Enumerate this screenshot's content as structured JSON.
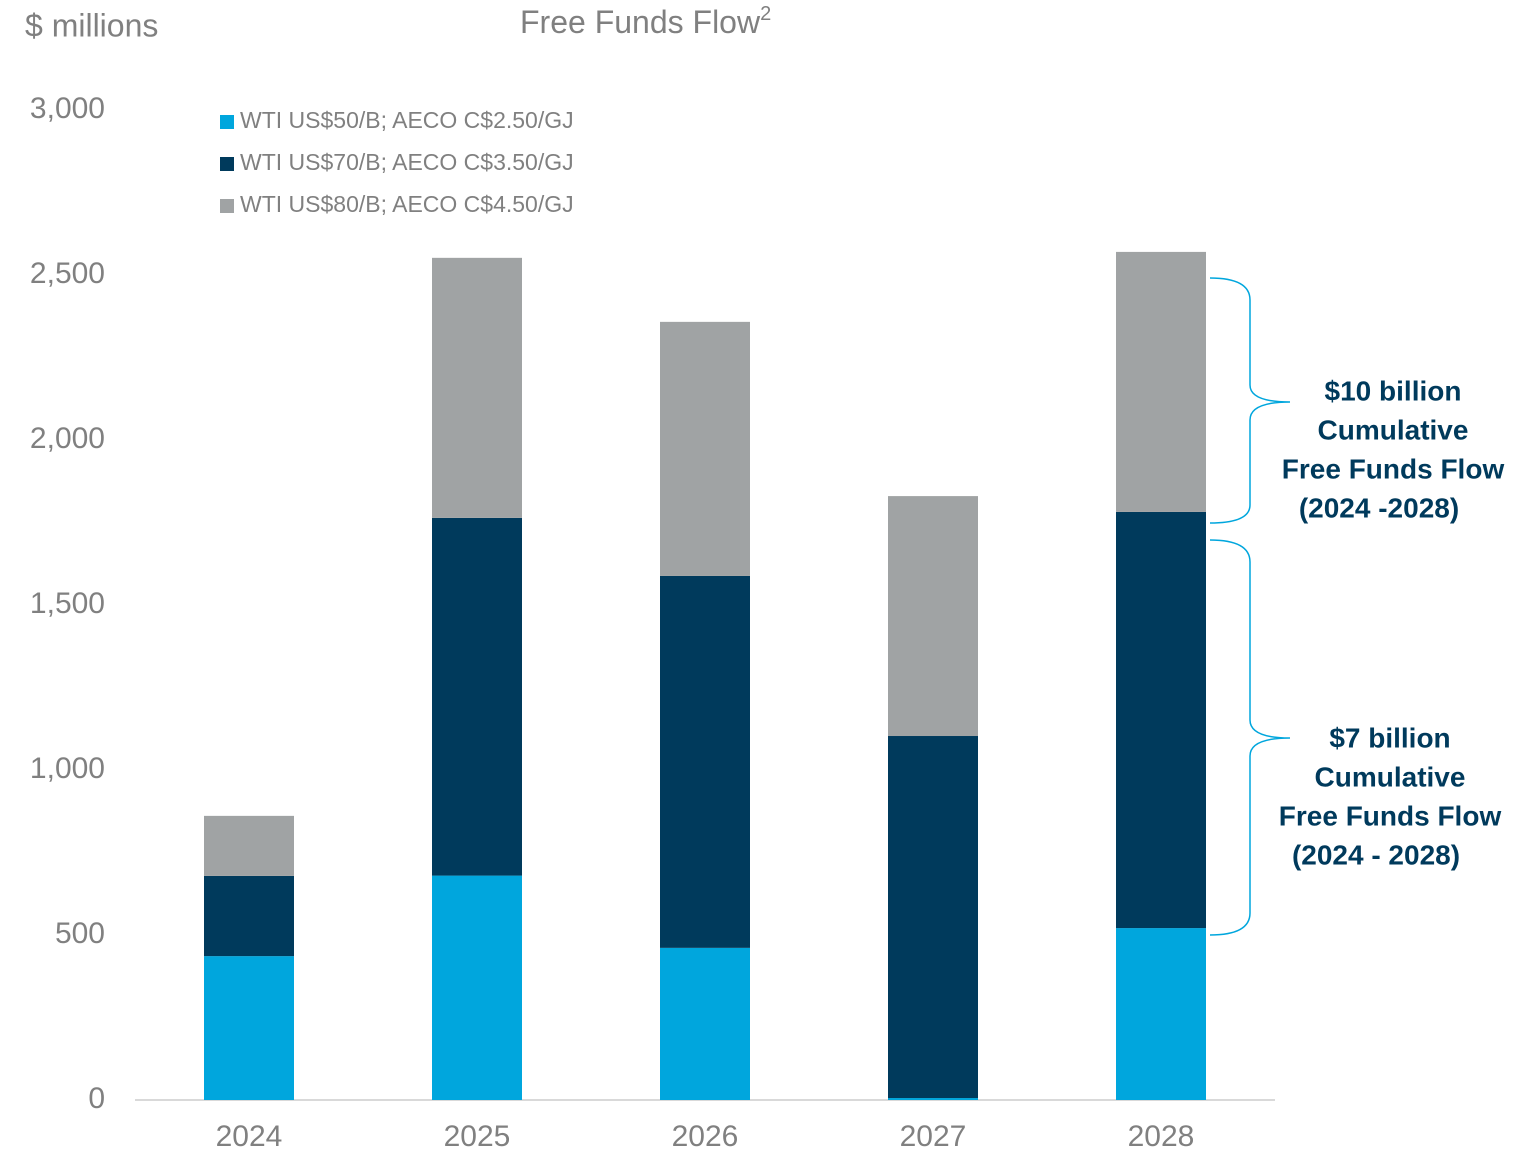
{
  "chart_data": {
    "type": "stacked_bar",
    "title": "Free Funds Flow",
    "title_superscript": "2",
    "ylabel": "$ millions",
    "categories": [
      "2024",
      "2025",
      "2026",
      "2027",
      "2028"
    ],
    "series": [
      {
        "name": "WTI US$50/B; AECO C$2.50/GJ",
        "color": "#00a6dd",
        "values": [
          436,
          680,
          461,
          6,
          521
        ]
      },
      {
        "name": "WTI US$70/B; AECO C$3.50/GJ",
        "color": "#003a5c",
        "values": [
          243,
          1084,
          1127,
          1097,
          1261
        ]
      },
      {
        "name": "WTI US$80/B; AECO C$4.50/GJ",
        "color": "#a0a3a4",
        "values": [
          182,
          788,
          770,
          727,
          788
        ]
      }
    ],
    "ylim": [
      0,
      3000
    ],
    "yticks": [
      0,
      500,
      {
        "value": 1000,
        "label": "1,000"
      },
      {
        "value": 1500,
        "label": "1,500"
      },
      {
        "value": 2000,
        "label": "2,000"
      },
      {
        "value": 2500,
        "label": "2,500"
      },
      {
        "value": 3000,
        "label": "3,000"
      }
    ],
    "legend": "top-left",
    "annotations": [
      {
        "lines": [
          "$10 billion",
          "Cumulative",
          "Free Funds Flow",
          "(2024 -2028)"
        ]
      },
      {
        "lines": [
          "$7 billion",
          "Cumulative",
          "Free Funds Flow",
          "(2024 - 2028)"
        ]
      }
    ]
  }
}
